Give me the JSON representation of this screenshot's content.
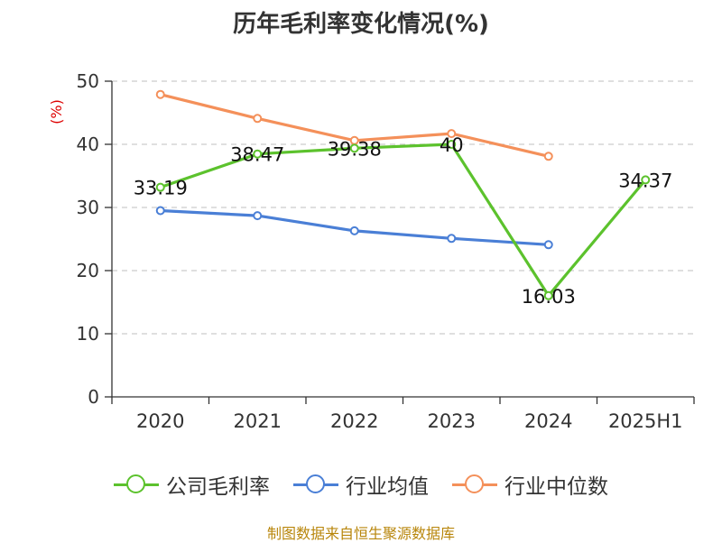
{
  "title": "历年毛利率变化情况(%)",
  "y_unit": "(%)",
  "footer": "制图数据来自恒生聚源数据库",
  "chart_data": {
    "type": "line",
    "title": "历年毛利率变化情况(%)",
    "ylabel": "(%)",
    "xlabel": "",
    "categories": [
      "2020",
      "2021",
      "2022",
      "2023",
      "2024",
      "2025H1"
    ],
    "ylim": [
      0,
      50
    ],
    "yticks": [
      0,
      10,
      20,
      30,
      40,
      50
    ],
    "grid": "horizontal dashed",
    "legend_position": "bottom",
    "series": [
      {
        "name": "公司毛利率",
        "color": "#5cc22d",
        "values": [
          33.19,
          38.47,
          39.38,
          40,
          16.03,
          34.37
        ],
        "labels": [
          "33.19",
          "38.47",
          "39.38",
          "40",
          "16.03",
          "34.37"
        ]
      },
      {
        "name": "行业均值",
        "color": "#4a7fd6",
        "values": [
          29.5,
          28.7,
          26.3,
          25.1,
          24.1,
          null
        ]
      },
      {
        "name": "行业中位数",
        "color": "#f4905a",
        "values": [
          47.9,
          44.1,
          40.6,
          41.7,
          38.1,
          null
        ]
      }
    ]
  }
}
